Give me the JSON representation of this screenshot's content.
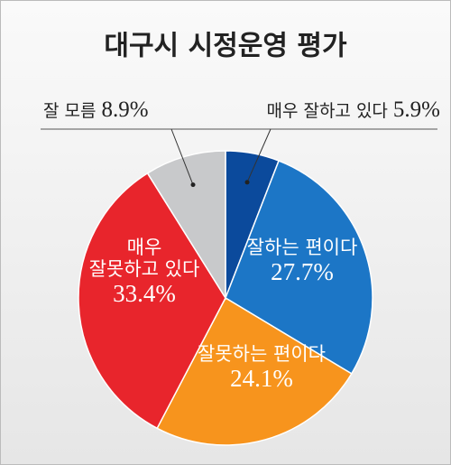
{
  "chart_data": {
    "type": "pie",
    "title": "대구시 시정운영 평가",
    "categories": [
      "매우 잘하고 있다",
      "잘하는 편이다",
      "잘못하는 편이다",
      "매우\n잘못하고 있다",
      "잘 모름"
    ],
    "values": [
      5.9,
      27.7,
      24.1,
      33.4,
      8.9
    ],
    "value_labels": [
      "5.9%",
      "27.7%",
      "24.1%",
      "33.4%",
      "8.9%"
    ],
    "colors": [
      "#0b4a9c",
      "#1c76c6",
      "#f7941d",
      "#e8252c",
      "#c8c9cb"
    ]
  }
}
